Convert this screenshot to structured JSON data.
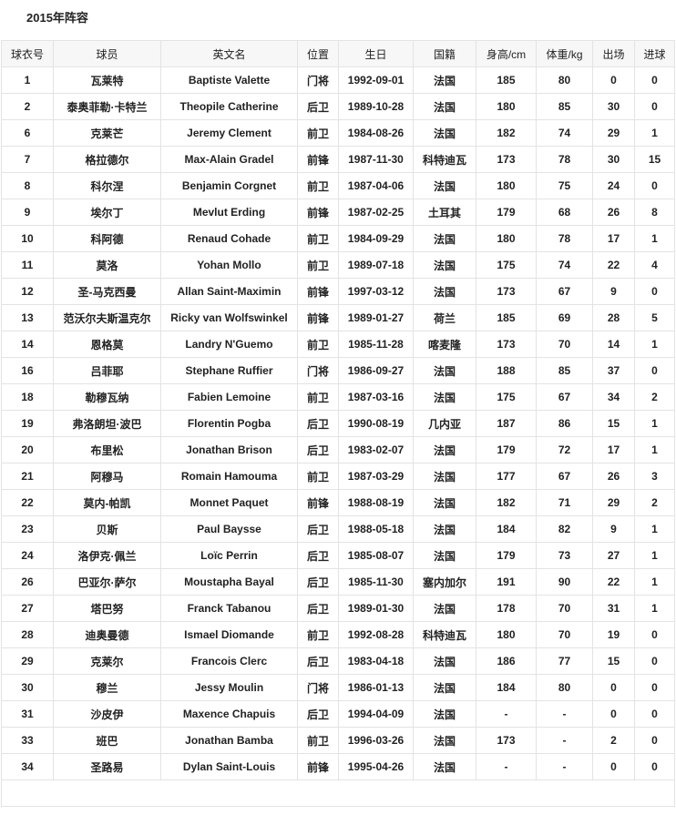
{
  "title": "2015年阵容",
  "columns": [
    "球衣号",
    "球员",
    "英文名",
    "位置",
    "生日",
    "国籍",
    "身高/cm",
    "体重/kg",
    "出场",
    "进球"
  ],
  "rows": [
    [
      "1",
      "瓦莱特",
      "Baptiste Valette",
      "门将",
      "1992-09-01",
      "法国",
      "185",
      "80",
      "0",
      "0"
    ],
    [
      "2",
      "泰奥菲勒·卡特兰",
      "Theopile Catherine",
      "后卫",
      "1989-10-28",
      "法国",
      "180",
      "85",
      "30",
      "0"
    ],
    [
      "6",
      "克莱芒",
      "Jeremy Clement",
      "前卫",
      "1984-08-26",
      "法国",
      "182",
      "74",
      "29",
      "1"
    ],
    [
      "7",
      "格拉德尔",
      "Max-Alain Gradel",
      "前锋",
      "1987-11-30",
      "科特迪瓦",
      "173",
      "78",
      "30",
      "15"
    ],
    [
      "8",
      "科尔涅",
      "Benjamin Corgnet",
      "前卫",
      "1987-04-06",
      "法国",
      "180",
      "75",
      "24",
      "0"
    ],
    [
      "9",
      "埃尔丁",
      "Mevlut Erding",
      "前锋",
      "1987-02-25",
      "土耳其",
      "179",
      "68",
      "26",
      "8"
    ],
    [
      "10",
      "科阿德",
      "Renaud Cohade",
      "前卫",
      "1984-09-29",
      "法国",
      "180",
      "78",
      "17",
      "1"
    ],
    [
      "11",
      "莫洛",
      "Yohan Mollo",
      "前卫",
      "1989-07-18",
      "法国",
      "175",
      "74",
      "22",
      "4"
    ],
    [
      "12",
      "圣-马克西曼",
      "Allan Saint-Maximin",
      "前锋",
      "1997-03-12",
      "法国",
      "173",
      "67",
      "9",
      "0"
    ],
    [
      "13",
      "范沃尔夫斯温克尔",
      "Ricky van Wolfswinkel",
      "前锋",
      "1989-01-27",
      "荷兰",
      "185",
      "69",
      "28",
      "5"
    ],
    [
      "14",
      "恩格莫",
      "Landry N'Guemo",
      "前卫",
      "1985-11-28",
      "喀麦隆",
      "173",
      "70",
      "14",
      "1"
    ],
    [
      "16",
      "吕菲耶",
      "Stephane Ruffier",
      "门将",
      "1986-09-27",
      "法国",
      "188",
      "85",
      "37",
      "0"
    ],
    [
      "18",
      "勒穆瓦纳",
      "Fabien Lemoine",
      "前卫",
      "1987-03-16",
      "法国",
      "175",
      "67",
      "34",
      "2"
    ],
    [
      "19",
      "弗洛朗坦·波巴",
      "Florentin Pogba",
      "后卫",
      "1990-08-19",
      "几内亚",
      "187",
      "86",
      "15",
      "1"
    ],
    [
      "20",
      "布里松",
      "Jonathan Brison",
      "后卫",
      "1983-02-07",
      "法国",
      "179",
      "72",
      "17",
      "1"
    ],
    [
      "21",
      "阿穆马",
      "Romain Hamouma",
      "前卫",
      "1987-03-29",
      "法国",
      "177",
      "67",
      "26",
      "3"
    ],
    [
      "22",
      "莫内-帕凯",
      "Monnet Paquet",
      "前锋",
      "1988-08-19",
      "法国",
      "182",
      "71",
      "29",
      "2"
    ],
    [
      "23",
      "贝斯",
      "Paul Baysse",
      "后卫",
      "1988-05-18",
      "法国",
      "184",
      "82",
      "9",
      "1"
    ],
    [
      "24",
      "洛伊克·佩兰",
      "Loïc Perrin",
      "后卫",
      "1985-08-07",
      "法国",
      "179",
      "73",
      "27",
      "1"
    ],
    [
      "26",
      "巴亚尔·萨尔",
      "Moustapha Bayal",
      "后卫",
      "1985-11-30",
      "塞内加尔",
      "191",
      "90",
      "22",
      "1"
    ],
    [
      "27",
      "塔巴努",
      "Franck Tabanou",
      "后卫",
      "1989-01-30",
      "法国",
      "178",
      "70",
      "31",
      "1"
    ],
    [
      "28",
      "迪奥曼德",
      "Ismael Diomande",
      "前卫",
      "1992-08-28",
      "科特迪瓦",
      "180",
      "70",
      "19",
      "0"
    ],
    [
      "29",
      "克莱尔",
      "Francois Clerc",
      "后卫",
      "1983-04-18",
      "法国",
      "186",
      "77",
      "15",
      "0"
    ],
    [
      "30",
      "穆兰",
      "Jessy Moulin",
      "门将",
      "1986-01-13",
      "法国",
      "184",
      "80",
      "0",
      "0"
    ],
    [
      "31",
      "沙皮伊",
      "Maxence Chapuis",
      "后卫",
      "1994-04-09",
      "法国",
      "-",
      "-",
      "0",
      "0"
    ],
    [
      "33",
      "班巴",
      "Jonathan Bamba",
      "前卫",
      "1996-03-26",
      "法国",
      "173",
      "-",
      "2",
      "0"
    ],
    [
      "34",
      "圣路易",
      "Dylan Saint-Louis",
      "前锋",
      "1995-04-26",
      "法国",
      "-",
      "-",
      "0",
      "0"
    ]
  ]
}
